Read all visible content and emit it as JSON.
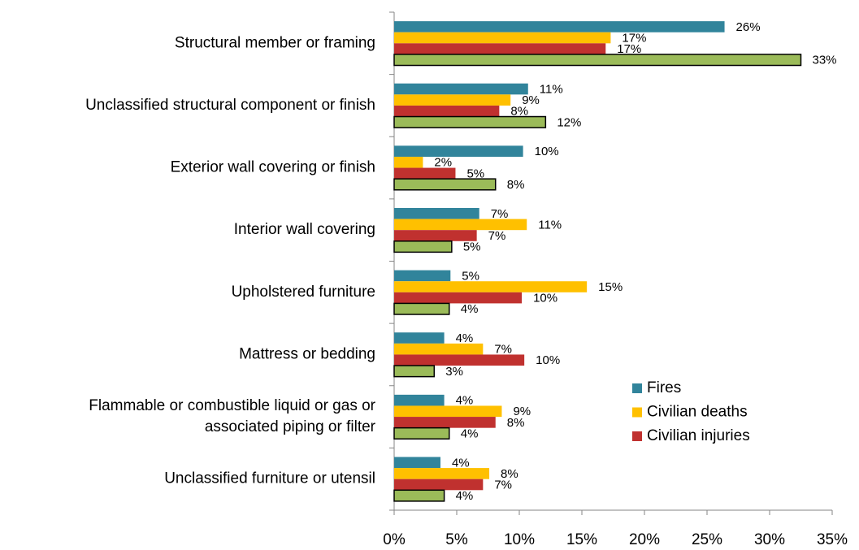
{
  "chart_data": {
    "type": "bar",
    "orientation": "horizontal",
    "categories": [
      "Structural member or framing",
      "Unclassified structural component or finish",
      "Exterior wall covering or finish",
      "Interior wall covering",
      "Upholstered furniture",
      "Mattress or bedding",
      [
        "Flammable or combustible liquid or gas or",
        "associated piping or filter"
      ],
      "Unclassified furniture or utensil"
    ],
    "series": [
      {
        "name": "Fires",
        "color": "#31849b",
        "values": [
          26.4,
          10.7,
          10.3,
          6.8,
          4.5,
          4.0,
          4.0,
          3.7
        ],
        "value_labels": [
          "26%",
          "11%",
          "10%",
          "7%",
          "5%",
          "4%",
          "4%",
          "4%"
        ]
      },
      {
        "name": "Civilian deaths",
        "color": "#ffc000",
        "values": [
          17.3,
          9.3,
          2.3,
          10.6,
          15.4,
          7.1,
          8.6,
          7.6
        ],
        "value_labels": [
          "17%",
          "9%",
          "2%",
          "11%",
          "15%",
          "7%",
          "9%",
          "8%"
        ]
      },
      {
        "name": "Civilian injuries",
        "color": "#c0312f",
        "values": [
          16.9,
          8.4,
          4.9,
          6.6,
          10.2,
          10.4,
          8.1,
          7.1
        ],
        "value_labels": [
          "17%",
          "8%",
          "5%",
          "7%",
          "10%",
          "10%",
          "8%",
          "7%"
        ]
      },
      {
        "color": "#9bbb59",
        "outline": "#000000",
        "values": [
          32.5,
          12.1,
          8.1,
          4.6,
          4.4,
          3.2,
          4.4,
          4.0
        ],
        "value_labels": [
          "33%",
          "12%",
          "8%",
          "5%",
          "4%",
          "3%",
          "4%",
          "4%"
        ]
      }
    ],
    "xlim": [
      0,
      35
    ],
    "xticks": [
      {
        "value": 0,
        "label": "0%"
      },
      {
        "value": 5,
        "label": "5%"
      },
      {
        "value": 10,
        "label": "10%"
      },
      {
        "value": 15,
        "label": "15%"
      },
      {
        "value": 20,
        "label": "20%"
      },
      {
        "value": 25,
        "label": "25%"
      },
      {
        "value": 30,
        "label": "30%"
      },
      {
        "value": 35,
        "label": "35%"
      }
    ],
    "legend": "right"
  }
}
